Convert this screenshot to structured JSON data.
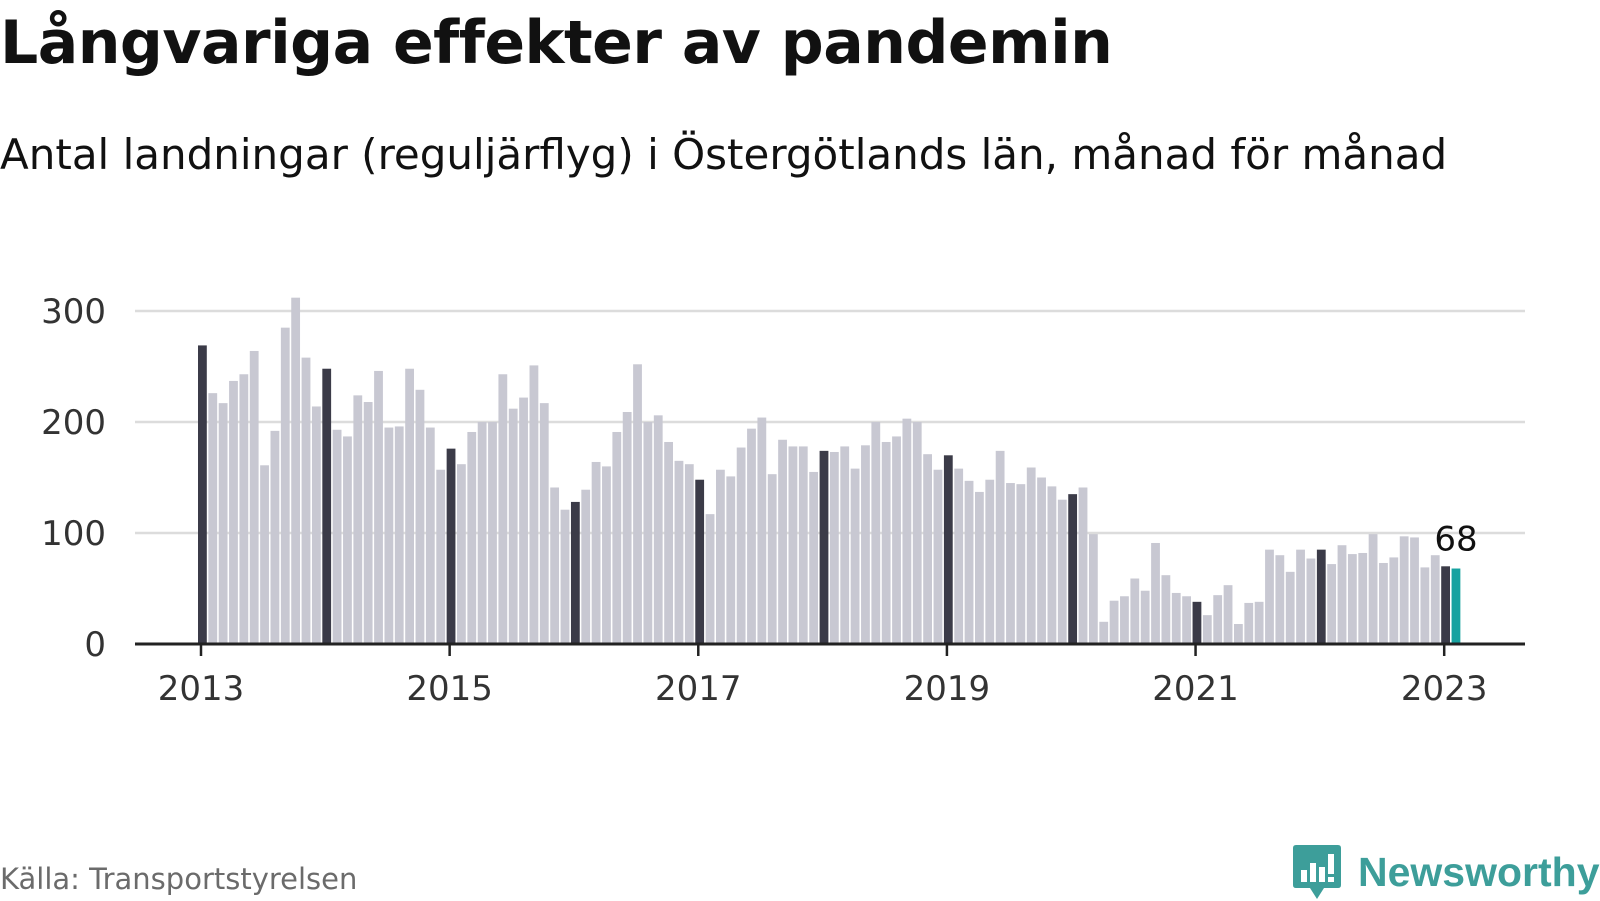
{
  "header": {
    "title": "Långvariga effekter av pandemin",
    "subtitle": "Antal landningar (reguljärflyg) i Östergötlands län, månad för månad"
  },
  "footer": {
    "source": "Källa: Transportstyrelsen",
    "brand": "Newsworthy"
  },
  "colors": {
    "bar": "#c8c8d2",
    "january_bar": "#3b3b48",
    "latest_bar": "#17a2a0",
    "grid": "#dcdcdc",
    "axis": "#222222",
    "brand": "#3d9e9a"
  },
  "chart_data": {
    "type": "bar",
    "start": "2013-01",
    "end": "2023-02",
    "title": "Långvariga effekter av pandemin",
    "subtitle": "Antal landningar (reguljärflyg) i Östergötlands län, månad för månad",
    "values": [
      269,
      226,
      217,
      237,
      243,
      264,
      161,
      192,
      285,
      312,
      258,
      214,
      248,
      193,
      187,
      224,
      218,
      246,
      195,
      196,
      248,
      229,
      195,
      157,
      176,
      162,
      191,
      200,
      200,
      243,
      212,
      222,
      251,
      217,
      141,
      121,
      128,
      139,
      164,
      160,
      191,
      209,
      252,
      200,
      206,
      182,
      165,
      162,
      148,
      117,
      157,
      151,
      177,
      194,
      204,
      153,
      184,
      178,
      178,
      155,
      174,
      173,
      178,
      158,
      179,
      200,
      182,
      187,
      203,
      200,
      171,
      157,
      170,
      158,
      147,
      137,
      148,
      174,
      145,
      144,
      159,
      150,
      142,
      130,
      135,
      141,
      99,
      20,
      39,
      43,
      59,
      48,
      91,
      62,
      46,
      43,
      38,
      26,
      44,
      53,
      18,
      37,
      38,
      85,
      80,
      65,
      85,
      77,
      85,
      72,
      89,
      81,
      82,
      99,
      73,
      78,
      97,
      96,
      69,
      80,
      70,
      68
    ],
    "highlight": "January of each year in dark; latest month in teal",
    "latest_label": "68",
    "yticks": [
      "300",
      "200",
      "100",
      "0"
    ],
    "xticks": [
      "2013",
      "2015",
      "2017",
      "2019",
      "2021",
      "2023"
    ],
    "ylim": [
      0,
      300
    ],
    "grid": true
  }
}
